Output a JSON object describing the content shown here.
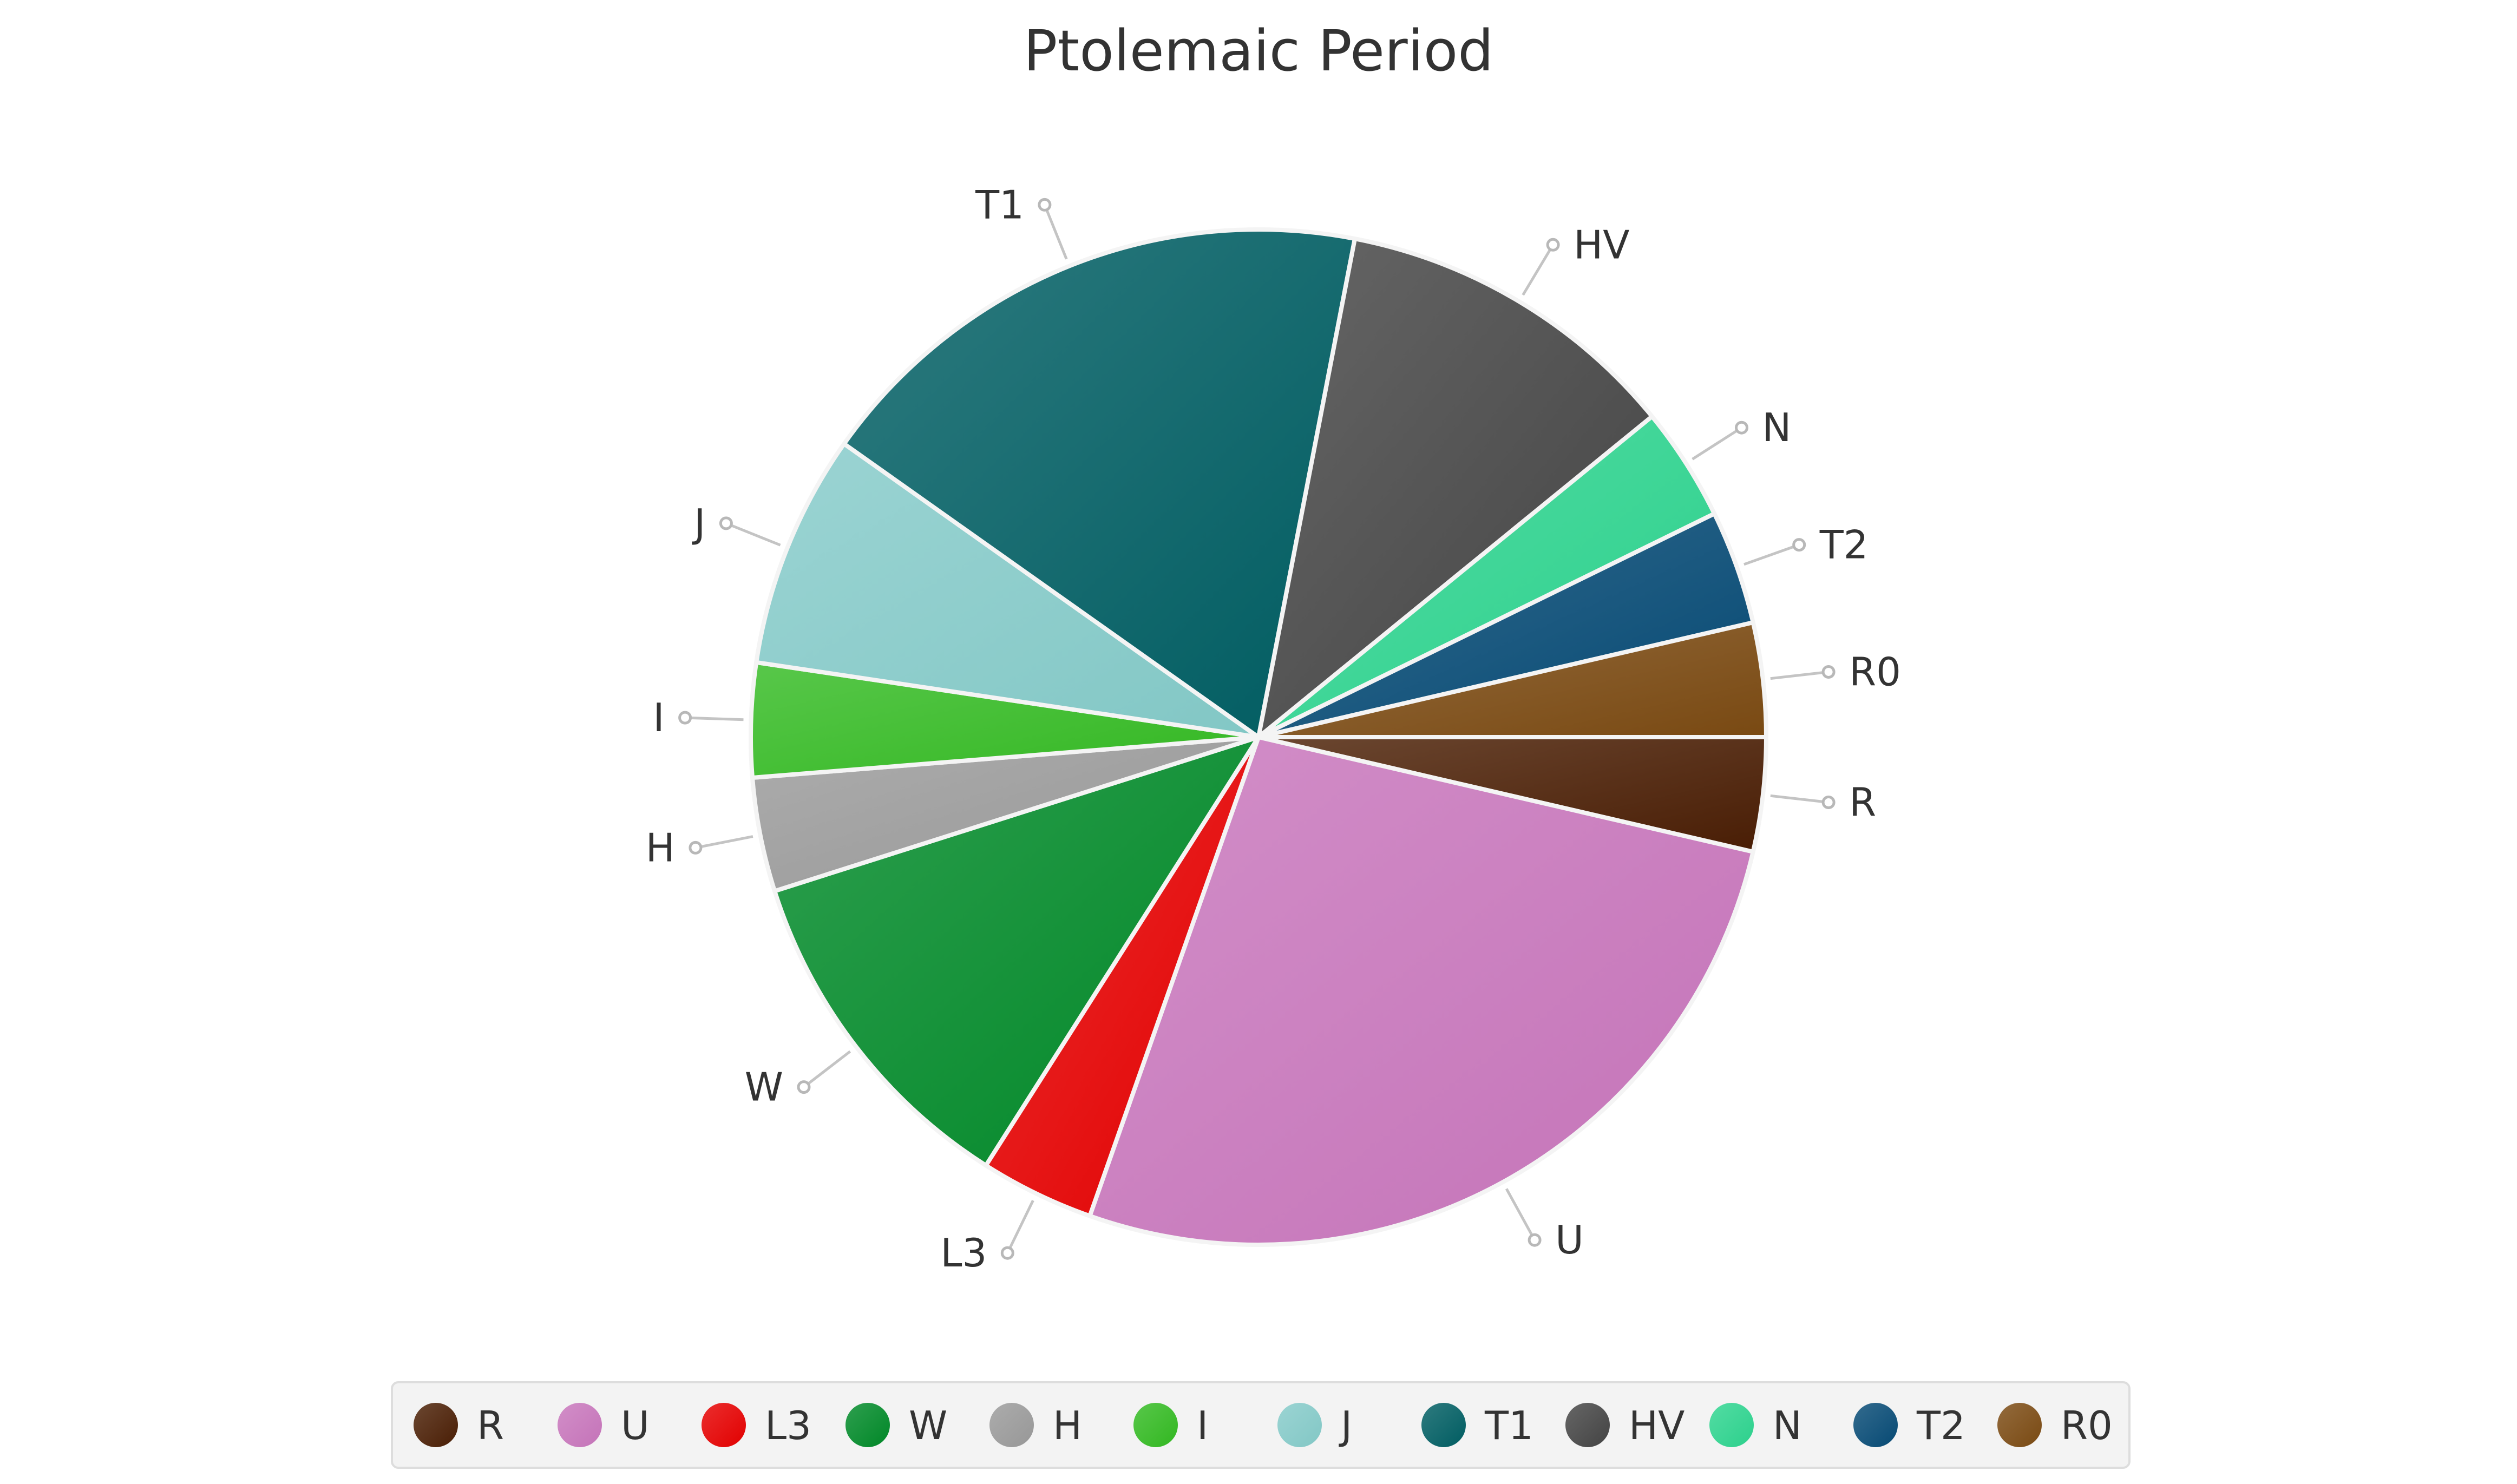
{
  "chart_data": {
    "type": "pie",
    "title": "Ptolemaic Period",
    "legend_position": "bottom",
    "slices": [
      {
        "label": "R",
        "value": 3.7,
        "color": "#4a1e04"
      },
      {
        "label": "U",
        "value": 27.3,
        "color": "#c875bc"
      },
      {
        "label": "L3",
        "value": 3.7,
        "color": "#e60000"
      },
      {
        "label": "W",
        "value": 11.3,
        "color": "#008a28"
      },
      {
        "label": "H",
        "value": 3.7,
        "color": "#9a9a9a"
      },
      {
        "label": "I",
        "value": 3.7,
        "color": "#33bb22"
      },
      {
        "label": "J",
        "value": 7.6,
        "color": "#85cbc9"
      },
      {
        "label": "T1",
        "value": 18.6,
        "color": "#005e63"
      },
      {
        "label": "HV",
        "value": 11.3,
        "color": "#444444"
      },
      {
        "label": "N",
        "value": 3.7,
        "color": "#2dd48f"
      },
      {
        "label": "T2",
        "value": 3.7,
        "color": "#064a75"
      },
      {
        "label": "R0",
        "value": 3.7,
        "color": "#7b4a12"
      }
    ]
  }
}
